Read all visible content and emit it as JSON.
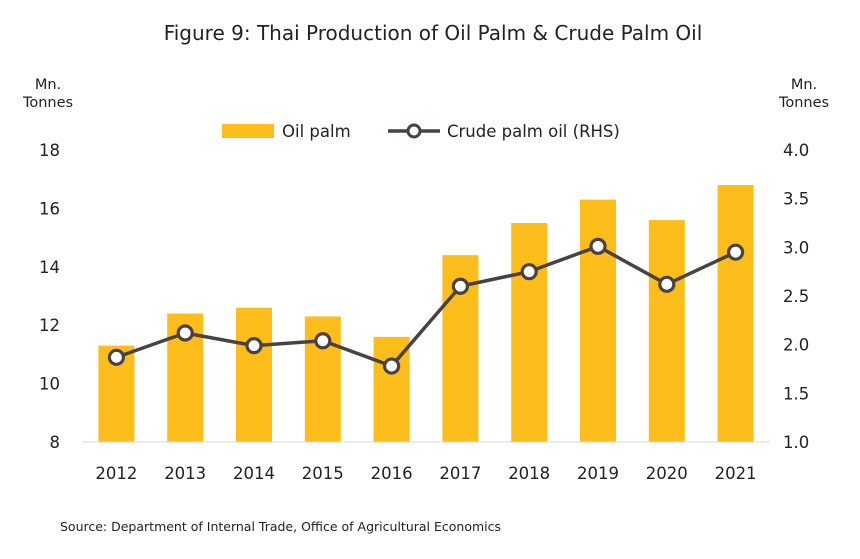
{
  "chart_data": {
    "type": "bar",
    "title": "Figure 9: Thai Production of Oil Palm & Crude Palm Oil",
    "source": "Source: Department of Internal Trade, Office of Agricultural Economics",
    "categories": [
      "2012",
      "2013",
      "2014",
      "2015",
      "2016",
      "2017",
      "2018",
      "2019",
      "2020",
      "2021"
    ],
    "left_axis": {
      "unit_line1": "Mn.",
      "unit_line2": "Tonnes",
      "ylim": [
        8,
        18
      ],
      "ticks": [
        "8",
        "10",
        "12",
        "14",
        "16",
        "18"
      ]
    },
    "right_axis": {
      "unit_line1": "Mn.",
      "unit_line2": "Tonnes",
      "ylim": [
        1.0,
        4.0
      ],
      "ticks": [
        "1.0",
        "1.5",
        "2.0",
        "2.5",
        "3.0",
        "3.5",
        "4.0"
      ]
    },
    "series": [
      {
        "name": "Oil palm",
        "type": "bar",
        "axis": "left",
        "color": "#FDBE1B",
        "values": [
          11.3,
          12.4,
          12.6,
          12.3,
          11.6,
          14.4,
          15.5,
          16.3,
          15.6,
          16.8
        ]
      },
      {
        "name": "Crude palm oil (RHS)",
        "type": "line",
        "axis": "right",
        "color": "#4A4141",
        "marker": "open-circle",
        "values": [
          1.87,
          2.12,
          1.99,
          2.04,
          1.78,
          2.6,
          2.75,
          3.01,
          2.62,
          2.95
        ]
      }
    ],
    "legend_position": "top-center",
    "grid": false
  }
}
